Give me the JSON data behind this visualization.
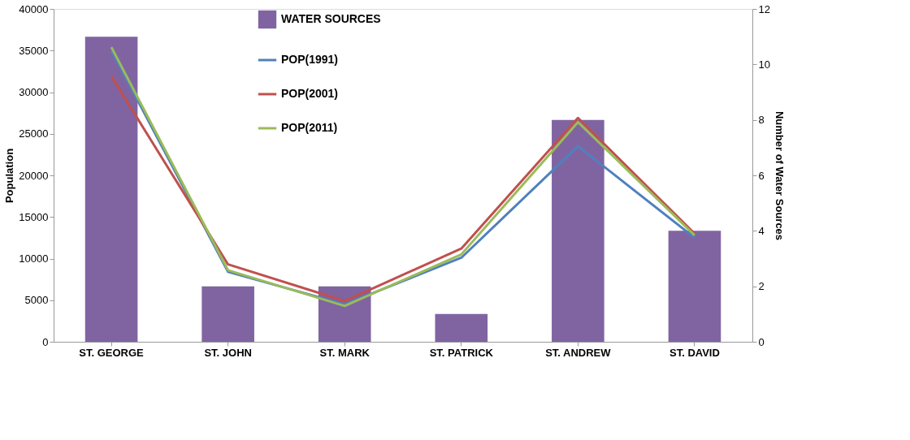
{
  "chart_data": {
    "type": "bar",
    "ylabel": "Population",
    "y2label": "Number of Water Sources",
    "categories": [
      "ST. GEORGE",
      "ST. JOHN",
      "ST. MARK",
      "ST. PATRICK",
      "ST. ANDREW",
      "ST. DAVID"
    ],
    "series": [
      {
        "name": "WATER SOURCES",
        "axis": "y2",
        "color": "#8064a2",
        "values": [
          11,
          2,
          2,
          1,
          8,
          4
        ]
      },
      {
        "name": "POP(1991)",
        "type": "line",
        "color": "#4f81bd",
        "values": [
          35000,
          8400,
          4500,
          10100,
          23500,
          12500
        ]
      },
      {
        "name": "POP(2001)",
        "type": "line",
        "color": "#c0504d",
        "values": [
          31900,
          9300,
          4900,
          11200,
          26900,
          13000
        ]
      },
      {
        "name": "POP(2011)",
        "type": "line",
        "color": "#9bbb59",
        "values": [
          35400,
          8600,
          4300,
          10500,
          26400,
          12800
        ]
      }
    ],
    "ylim": [
      0,
      40000
    ],
    "yticks": [
      0,
      5000,
      10000,
      15000,
      20000,
      25000,
      30000,
      35000,
      40000
    ],
    "y2lim": [
      0,
      12
    ],
    "y2ticks": [
      0,
      2,
      4,
      6,
      8,
      10,
      12
    ],
    "grid": false,
    "legend": "top",
    "marker": "none",
    "line_style": "solid"
  }
}
